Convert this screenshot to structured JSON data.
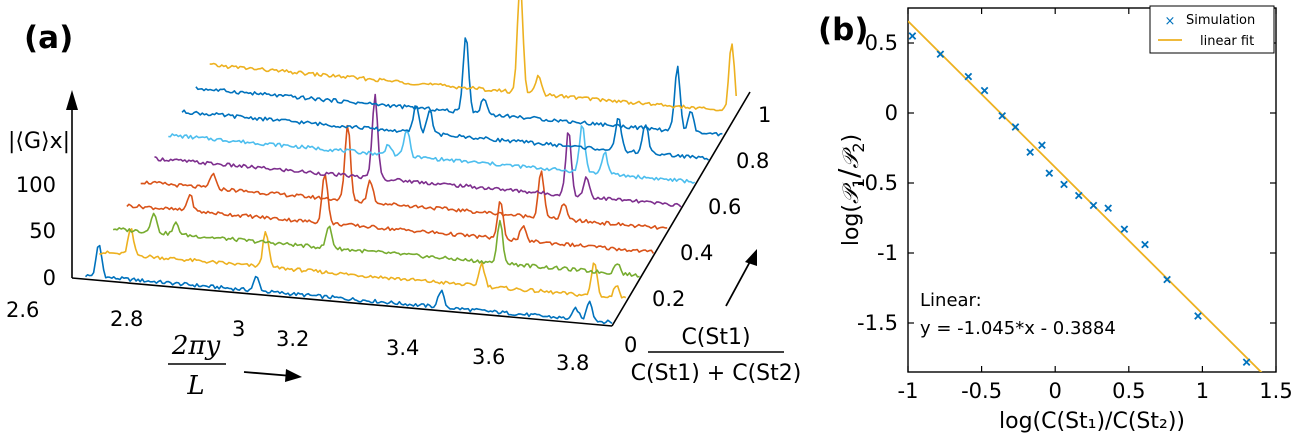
{
  "chart_data": [
    {
      "panel": "(a)",
      "type": "line",
      "view": "3d-waterfall",
      "x_ticks": [
        "2.6",
        "2.8",
        "3",
        "3.2",
        "3.4",
        "3.6",
        "3.8"
      ],
      "x_range": [
        2.6,
        3.8
      ],
      "z_ticks": [
        "0",
        "50",
        "100"
      ],
      "z_range": [
        0,
        120
      ],
      "z_label": "|⟨G⟩x|",
      "depth_ticks": [
        "0",
        "0.2",
        "0.4",
        "0.6",
        "0.8",
        "1"
      ],
      "depth_range": [
        0,
        1
      ],
      "depth_label_num": "C(St1)",
      "depth_label_den": "C(St1) + C(St2)",
      "x_label_num": "2πy",
      "x_label_den": "L",
      "series": [
        {
          "depth": 0.0,
          "color": "#0072BD",
          "peaks": [
            [
              2.66,
              35
            ],
            [
              3.01,
              15
            ],
            [
              3.42,
              18
            ],
            [
              3.72,
              12
            ],
            [
              3.75,
              22
            ]
          ]
        },
        {
          "depth": 0.1,
          "color": "#EDB120",
          "peaks": [
            [
              2.7,
              28
            ],
            [
              3.0,
              40
            ],
            [
              3.48,
              25
            ],
            [
              3.73,
              38
            ],
            [
              3.78,
              15
            ]
          ]
        },
        {
          "depth": 0.2,
          "color": "#77AC30",
          "peaks": [
            [
              2.72,
              22
            ],
            [
              2.77,
              12
            ],
            [
              3.11,
              24
            ],
            [
              3.49,
              45
            ],
            [
              3.75,
              12
            ]
          ]
        },
        {
          "depth": 0.3,
          "color": "#D95319",
          "peaks": [
            [
              2.77,
              18
            ],
            [
              3.07,
              55
            ],
            [
              3.46,
              40
            ],
            [
              3.51,
              15
            ]
          ]
        },
        {
          "depth": 0.4,
          "color": "#D95319",
          "peaks": [
            [
              2.79,
              16
            ],
            [
              3.09,
              82
            ],
            [
              3.14,
              24
            ],
            [
              3.52,
              52
            ],
            [
              3.57,
              18
            ]
          ]
        },
        {
          "depth": 0.5,
          "color": "#7E2F8E",
          "peaks": [
            [
              3.12,
              90
            ],
            [
              3.55,
              70
            ],
            [
              3.59,
              22
            ]
          ]
        },
        {
          "depth": 0.6,
          "color": "#4DBEEE",
          "peaks": [
            [
              3.12,
              12
            ],
            [
              3.16,
              30
            ],
            [
              3.55,
              52
            ],
            [
              3.6,
              24
            ]
          ]
        },
        {
          "depth": 0.7,
          "color": "#0072BD",
          "peaks": [
            [
              3.15,
              30
            ],
            [
              3.18,
              26
            ],
            [
              3.6,
              36
            ],
            [
              3.66,
              32
            ]
          ]
        },
        {
          "depth": 0.8,
          "color": "#0072BD",
          "peaks": [
            [
              3.23,
              85
            ],
            [
              3.27,
              18
            ],
            [
              3.7,
              70
            ],
            [
              3.73,
              22
            ]
          ]
        },
        {
          "depth": 0.9,
          "color": "#EDB120",
          "peaks": [
            [
              3.32,
              120
            ],
            [
              3.36,
              20
            ],
            [
              3.79,
              75
            ],
            [
              3.82,
              20
            ]
          ]
        }
      ]
    },
    {
      "panel": "(b)",
      "type": "scatter",
      "x_ticks": [
        "-1",
        "-0.5",
        "0",
        "0.5",
        "1",
        "1.5"
      ],
      "xlim": [
        -1,
        1.5
      ],
      "y_ticks": [
        "0.5",
        "0",
        "-0.5",
        "-1",
        "-1.5"
      ],
      "ylim": [
        -1.85,
        0.75
      ],
      "xlabel": "log(C(St₁)/C(St₂))",
      "ylabel_prefix": "log(",
      "ylabel_p1": "𝒫",
      "ylabel_sub1": "1",
      "ylabel_slash": "/",
      "ylabel_p2": "𝒫",
      "ylabel_sub2": "2",
      "ylabel_suffix": ")",
      "legend": [
        "Simulation",
        "linear fit"
      ],
      "legend_position": "top-right",
      "points": [
        [
          -0.97,
          0.55
        ],
        [
          -0.78,
          0.42
        ],
        [
          -0.59,
          0.26
        ],
        [
          -0.48,
          0.16
        ],
        [
          -0.36,
          -0.02
        ],
        [
          -0.27,
          -0.1
        ],
        [
          -0.17,
          -0.28
        ],
        [
          -0.09,
          -0.23
        ],
        [
          -0.04,
          -0.43
        ],
        [
          0.06,
          -0.51
        ],
        [
          0.16,
          -0.59
        ],
        [
          0.26,
          -0.66
        ],
        [
          0.36,
          -0.68
        ],
        [
          0.47,
          -0.83
        ],
        [
          0.61,
          -0.94
        ],
        [
          0.76,
          -1.19
        ],
        [
          0.97,
          -1.45
        ],
        [
          1.3,
          -1.78
        ]
      ],
      "fit": {
        "slope": -1.045,
        "intercept": -0.3884
      },
      "annotation_title": "Linear:",
      "annotation_eq": "y = -1.045*x - 0.3884",
      "colors": {
        "points": "#0072BD",
        "fit": "#EDB120"
      }
    }
  ]
}
